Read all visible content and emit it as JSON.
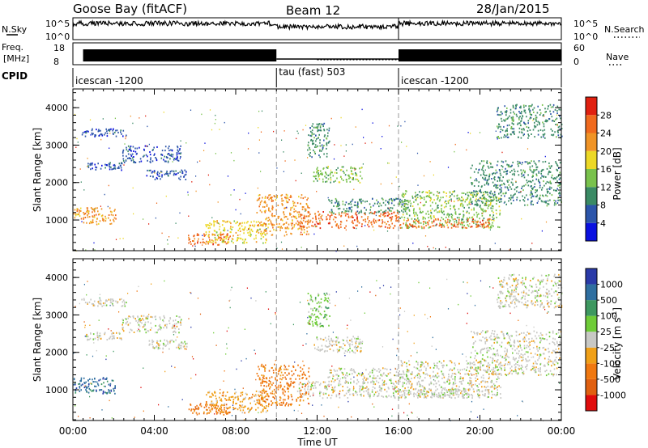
{
  "header": {
    "station": "Goose Bay (fitACF)",
    "beam": "Beam 12",
    "date": "28/Jan/2015"
  },
  "nsky_panel": {
    "left_label": "N.Sky",
    "right_label": "N.Search",
    "ticks": [
      "10^5",
      "10^0"
    ]
  },
  "freq_panel": {
    "left_label_1": "Freq.",
    "left_label_2": "[MHz]",
    "right_label": "Nave",
    "left_ticks": [
      "18",
      "8"
    ],
    "right_ticks": [
      "60",
      "0"
    ]
  },
  "cpid": {
    "label": "CPID",
    "segments": [
      {
        "start_hour": 0,
        "end_hour": 10,
        "name": "icescan -1200"
      },
      {
        "start_hour": 10,
        "end_hour": 16,
        "name": "tau (fast) 503"
      },
      {
        "start_hour": 16,
        "end_hour": 24,
        "name": "icescan -1200"
      }
    ]
  },
  "axes": {
    "xlabel": "Time UT",
    "x_ticks": [
      "00:00",
      "04:00",
      "08:00",
      "12:00",
      "16:00",
      "20:00",
      "00:00"
    ],
    "x_range_hours": [
      0,
      24
    ],
    "ylabel": "Slant Range [km]",
    "y_ticks": [
      "1000",
      "2000",
      "3000",
      "4000"
    ],
    "y_range_km": [
      180,
      4500
    ]
  },
  "colorbars": {
    "power": {
      "label": "Power [dB]",
      "ticks": [
        "4",
        "8",
        "12",
        "16",
        "20",
        "24",
        "28"
      ],
      "colors": [
        "#0a10e0",
        "#2c55aa",
        "#3a8a64",
        "#79c24c",
        "#ecd826",
        "#f09426",
        "#f06a1e",
        "#e02010"
      ]
    },
    "velocity": {
      "label": "Velocity [m s",
      "label_sup": "-1",
      "label_end": "]",
      "ticks": [
        "1000",
        "500",
        "100",
        "25",
        "-25",
        "-100",
        "-500",
        "-1000"
      ],
      "colors": [
        "#2a3aa8",
        "#2f6fa0",
        "#3e9860",
        "#6fcc38",
        "#c8c8c4",
        "#f0a018",
        "#f07810",
        "#e06010",
        "#e00c0c"
      ]
    }
  },
  "chart_data": {
    "type": "heatmap",
    "x_units": "hours UT",
    "y_units": "km",
    "cpid_boundaries_hours": [
      10,
      16
    ],
    "power_features": [
      {
        "t0": 0.0,
        "t1": 2.1,
        "r0": 900,
        "r1": 1350,
        "level": 5
      },
      {
        "t0": 0.4,
        "t1": 2.6,
        "r0": 3250,
        "r1": 3450,
        "level": 1
      },
      {
        "t0": 0.6,
        "t1": 2.4,
        "r0": 2350,
        "r1": 2550,
        "level": 1
      },
      {
        "t0": 2.4,
        "t1": 5.3,
        "r0": 2550,
        "r1": 3000,
        "level": 1
      },
      {
        "t0": 3.6,
        "t1": 5.6,
        "r0": 2100,
        "r1": 2350,
        "level": 1
      },
      {
        "t0": 5.6,
        "t1": 7.7,
        "r0": 350,
        "r1": 650,
        "level": 6
      },
      {
        "t0": 6.5,
        "t1": 9.6,
        "r0": 400,
        "r1": 1000,
        "level": 4
      },
      {
        "t0": 9.0,
        "t1": 11.6,
        "r0": 600,
        "r1": 1700,
        "level": 5
      },
      {
        "t0": 11.0,
        "t1": 16.0,
        "r0": 800,
        "r1": 1250,
        "level": 6
      },
      {
        "t0": 11.8,
        "t1": 14.2,
        "r0": 2000,
        "r1": 2450,
        "level": 3
      },
      {
        "t0": 11.5,
        "t1": 12.6,
        "r0": 2700,
        "r1": 3600,
        "level": 2
      },
      {
        "t0": 12.5,
        "t1": 16.5,
        "r0": 1200,
        "r1": 1600,
        "level": 2
      },
      {
        "t0": 16.0,
        "t1": 21.0,
        "r0": 800,
        "r1": 1800,
        "level": 3
      },
      {
        "t0": 16.0,
        "t1": 20.5,
        "r0": 800,
        "r1": 1050,
        "level": 6
      },
      {
        "t0": 19.5,
        "t1": 24.0,
        "r0": 1400,
        "r1": 2600,
        "level": 2
      },
      {
        "t0": 20.8,
        "t1": 24.0,
        "r0": 3200,
        "r1": 4100,
        "level": 2
      }
    ],
    "velocity_features": [
      {
        "t0": 0.0,
        "t1": 2.1,
        "r0": 900,
        "r1": 1350,
        "level": 1
      },
      {
        "t0": 0.4,
        "t1": 2.6,
        "r0": 3250,
        "r1": 3450,
        "level": 4
      },
      {
        "t0": 0.6,
        "t1": 2.4,
        "r0": 2350,
        "r1": 2550,
        "level": 4
      },
      {
        "t0": 2.4,
        "t1": 5.3,
        "r0": 2550,
        "r1": 3000,
        "level": 4
      },
      {
        "t0": 3.6,
        "t1": 5.6,
        "r0": 2100,
        "r1": 2350,
        "level": 4
      },
      {
        "t0": 5.6,
        "t1": 7.7,
        "r0": 350,
        "r1": 650,
        "level": 6
      },
      {
        "t0": 6.5,
        "t1": 9.6,
        "r0": 400,
        "r1": 1000,
        "level": 5
      },
      {
        "t0": 9.0,
        "t1": 11.6,
        "r0": 600,
        "r1": 1700,
        "level": 6
      },
      {
        "t0": 11.0,
        "t1": 16.0,
        "r0": 800,
        "r1": 1250,
        "level": 4
      },
      {
        "t0": 11.8,
        "t1": 14.2,
        "r0": 2000,
        "r1": 2450,
        "level": 4
      },
      {
        "t0": 11.5,
        "t1": 12.6,
        "r0": 2700,
        "r1": 3600,
        "level": 3
      },
      {
        "t0": 12.5,
        "t1": 16.5,
        "r0": 1200,
        "r1": 1600,
        "level": 4
      },
      {
        "t0": 16.0,
        "t1": 21.0,
        "r0": 800,
        "r1": 1800,
        "level": 4
      },
      {
        "t0": 16.0,
        "t1": 20.5,
        "r0": 800,
        "r1": 1050,
        "level": 4
      },
      {
        "t0": 19.5,
        "t1": 24.0,
        "r0": 1400,
        "r1": 2600,
        "level": 4
      },
      {
        "t0": 20.8,
        "t1": 24.0,
        "r0": 3200,
        "r1": 4100,
        "level": 4
      }
    ]
  }
}
